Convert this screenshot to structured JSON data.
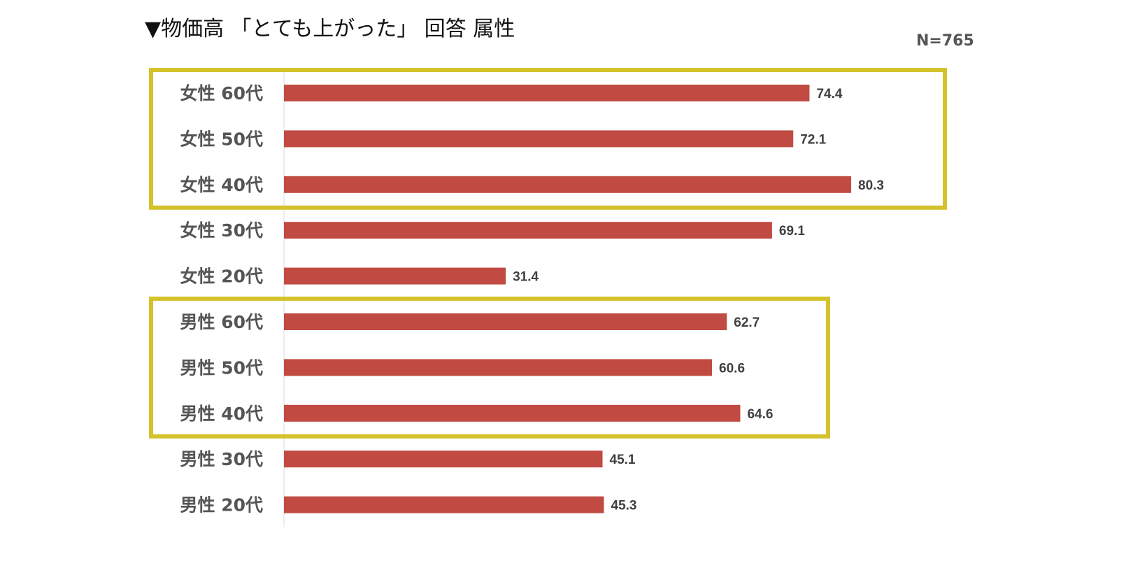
{
  "title": "▼物価高 「とても上がった」 回答 属性",
  "sample_size": "N=765",
  "colors": {
    "bar": "#C14B42",
    "highlight_box": "#D4C22C",
    "axis": "#D9D9D9",
    "label": "#555555"
  },
  "chart_data": {
    "type": "bar",
    "orientation": "horizontal",
    "title": "▼物価高 「とても上がった」 回答 属性",
    "categories": [
      "女性 60代",
      "女性 50代",
      "女性 40代",
      "女性 30代",
      "女性 20代",
      "男性 60代",
      "男性 50代",
      "男性 40代",
      "男性 30代",
      "男性 20代"
    ],
    "values": [
      74.4,
      72.1,
      80.3,
      69.1,
      31.4,
      62.7,
      60.6,
      64.6,
      45.1,
      45.3
    ],
    "value_labels": [
      "74.4",
      "72.1",
      "80.3",
      "69.1",
      "31.4",
      "62.7",
      "60.6",
      "64.6",
      "45.1",
      "45.3"
    ],
    "xlim": [
      0,
      100
    ],
    "grid": false,
    "highlight_groups": [
      {
        "from": "女性 60代",
        "to": "女性 40代"
      },
      {
        "from": "男性 60代",
        "to": "男性 40代"
      }
    ]
  }
}
